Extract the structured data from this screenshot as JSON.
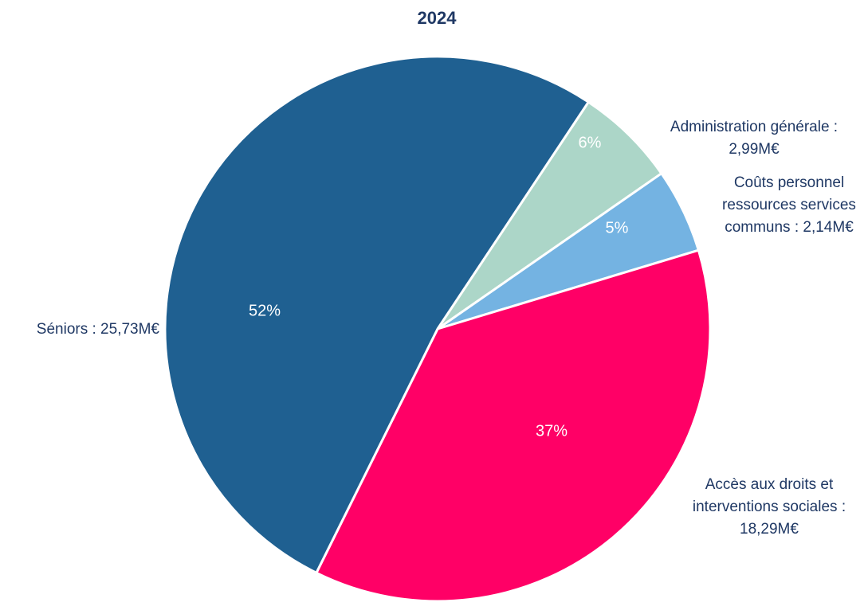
{
  "chart_data": {
    "type": "pie",
    "title": "2024",
    "categories": [
      "Administration générale :\n2,99M€",
      "Coûts personnel\nressources services\ncommuns : 2,14M€",
      "Accès aux droits et\ninterventions sociales :\n18,29M€",
      "Séniors : 25,73M€"
    ],
    "values": [
      6,
      5,
      37,
      52
    ],
    "value_labels": [
      "6%",
      "5%",
      "37%",
      "52%"
    ],
    "colors": [
      "#acd6c8",
      "#74b3e2",
      "#ff0066",
      "#1f6091"
    ]
  }
}
